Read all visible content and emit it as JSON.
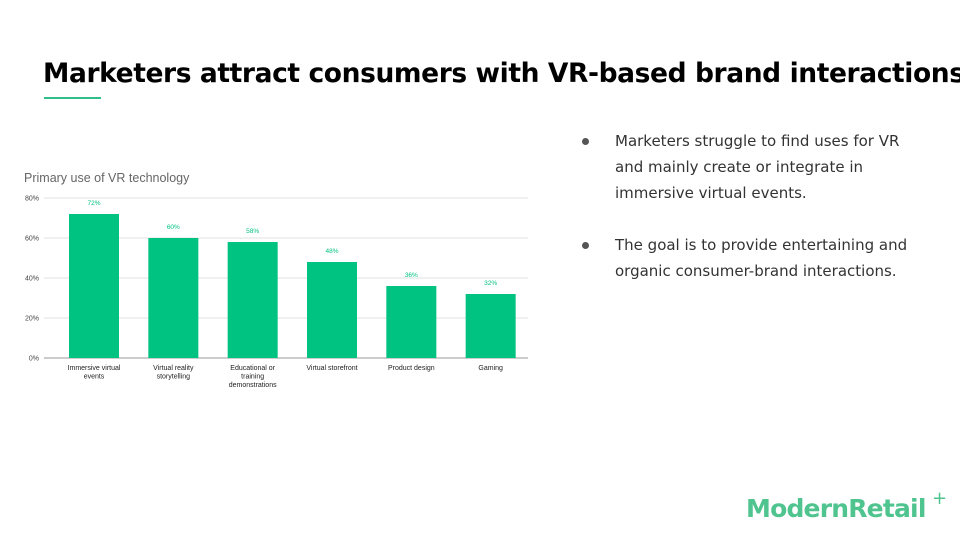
{
  "slide": {
    "title": "Marketers attract consumers with VR-based brand interactions",
    "accent_color": "#2fbf88"
  },
  "chart_data": {
    "type": "bar",
    "title": "Primary use of VR technology",
    "categories": [
      [
        "Immersive virtual",
        "events"
      ],
      [
        "Virtual reality",
        "storytelling"
      ],
      [
        "Educational or",
        "training",
        "demonstrations"
      ],
      [
        "Virtual storefront"
      ],
      [
        "Product design"
      ],
      [
        "Gaming"
      ]
    ],
    "values": [
      72,
      60,
      58,
      48,
      36,
      32
    ],
    "value_labels": [
      "72%",
      "60%",
      "58%",
      "48%",
      "36%",
      "32%"
    ],
    "ylim": [
      0,
      80
    ],
    "yticks": [
      0,
      20,
      40,
      60,
      80
    ],
    "ytick_labels": [
      "0%",
      "20%",
      "40%",
      "60%",
      "80%"
    ],
    "bar_color": "#00c281",
    "grid": true
  },
  "bullets": [
    "Marketers struggle to find uses for VR and mainly create or integrate in immersive virtual events.",
    "The goal is to provide entertaining and organic consumer-brand interactions."
  ],
  "logo": {
    "text": "ModernRetail",
    "mark": "+",
    "color": "#50c48f"
  }
}
